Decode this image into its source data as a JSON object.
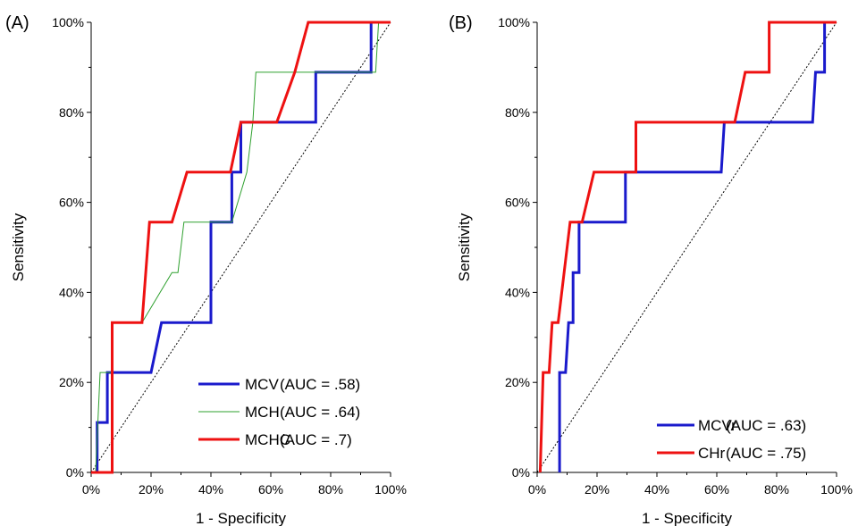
{
  "chart_data": [
    {
      "type": "line",
      "panel_label": "(A)",
      "xlabel": "1 - Specificity",
      "ylabel": "Sensitivity",
      "xlim": [
        0,
        100
      ],
      "ylim": [
        0,
        100
      ],
      "x_ticks": [
        "0%",
        "20%",
        "40%",
        "60%",
        "80%",
        "100%"
      ],
      "y_ticks": [
        "0%",
        "20%",
        "40%",
        "60%",
        "80%",
        "100%"
      ],
      "diagonal_reference": true,
      "legend_position": "bottom-right",
      "series": [
        {
          "name": "MCV",
          "auc_label": "(AUC = .58)",
          "color": "#1a1acc",
          "width": 3,
          "points": [
            [
              2,
              0
            ],
            [
              2,
              11.1
            ],
            [
              5.4,
              11.1
            ],
            [
              5.4,
              22.2
            ],
            [
              20,
              22.2
            ],
            [
              23.5,
              33.3
            ],
            [
              40,
              33.3
            ],
            [
              40,
              55.6
            ],
            [
              47,
              55.6
            ],
            [
              47,
              66.7
            ],
            [
              50,
              66.7
            ],
            [
              50,
              77.8
            ],
            [
              75,
              77.8
            ],
            [
              75,
              88.9
            ],
            [
              93.5,
              88.9
            ],
            [
              93.5,
              100
            ],
            [
              100,
              100
            ]
          ]
        },
        {
          "name": "MCH",
          "auc_label": "(AUC = .64)",
          "color": "#2ea02e",
          "width": 1,
          "points": [
            [
              1.5,
              0
            ],
            [
              3,
              22.2
            ],
            [
              7,
              22.2
            ],
            [
              7,
              33.3
            ],
            [
              17,
              33.3
            ],
            [
              27,
              44.4
            ],
            [
              29,
              44.4
            ],
            [
              31,
              55.6
            ],
            [
              47,
              55.6
            ],
            [
              52,
              66.7
            ],
            [
              54,
              77.8
            ],
            [
              55,
              88.9
            ],
            [
              95,
              88.9
            ],
            [
              96,
              100
            ],
            [
              100,
              100
            ]
          ]
        },
        {
          "name": "MCHC",
          "auc_label": "(AUC = .7)",
          "color": "#ee1111",
          "width": 3,
          "points": [
            [
              0,
              0
            ],
            [
              7,
              0
            ],
            [
              7,
              33.3
            ],
            [
              17,
              33.3
            ],
            [
              19.5,
              55.6
            ],
            [
              27,
              55.6
            ],
            [
              32,
              66.7
            ],
            [
              46.5,
              66.7
            ],
            [
              50,
              77.8
            ],
            [
              62,
              77.8
            ],
            [
              68,
              88.9
            ],
            [
              72.5,
              100
            ],
            [
              100,
              100
            ]
          ]
        }
      ]
    },
    {
      "type": "line",
      "panel_label": "(B)",
      "xlabel": "1 - Specificity",
      "ylabel": "Sensitivity",
      "xlim": [
        0,
        100
      ],
      "ylim": [
        0,
        100
      ],
      "x_ticks": [
        "0%",
        "20%",
        "40%",
        "60%",
        "80%",
        "100%"
      ],
      "y_ticks": [
        "0%",
        "20%",
        "40%",
        "60%",
        "80%",
        "100%"
      ],
      "diagonal_reference": true,
      "legend_position": "bottom-right",
      "series": [
        {
          "name": "MCVr",
          "auc_label": "(AUC = .63)",
          "color": "#1a1acc",
          "width": 3,
          "points": [
            [
              7.5,
              0
            ],
            [
              7.5,
              22.2
            ],
            [
              9.5,
              22.2
            ],
            [
              10.5,
              33.3
            ],
            [
              12,
              33.3
            ],
            [
              12,
              44.4
            ],
            [
              14,
              44.4
            ],
            [
              14,
              55.6
            ],
            [
              29.5,
              55.6
            ],
            [
              29.5,
              66.7
            ],
            [
              61.5,
              66.7
            ],
            [
              62.5,
              77.8
            ],
            [
              92,
              77.8
            ],
            [
              93,
              88.9
            ],
            [
              96,
              88.9
            ],
            [
              96,
              100
            ],
            [
              100,
              100
            ]
          ]
        },
        {
          "name": "CHr",
          "auc_label": "(AUC = .75)",
          "color": "#ee1111",
          "width": 3,
          "points": [
            [
              1,
              0
            ],
            [
              2,
              22.2
            ],
            [
              4,
              22.2
            ],
            [
              5,
              33.3
            ],
            [
              7,
              33.3
            ],
            [
              11,
              55.6
            ],
            [
              15,
              55.6
            ],
            [
              19,
              66.7
            ],
            [
              33,
              66.7
            ],
            [
              33,
              77.8
            ],
            [
              66,
              77.8
            ],
            [
              69.5,
              88.9
            ],
            [
              77.5,
              88.9
            ],
            [
              77.5,
              100
            ],
            [
              100,
              100
            ]
          ]
        }
      ]
    }
  ]
}
